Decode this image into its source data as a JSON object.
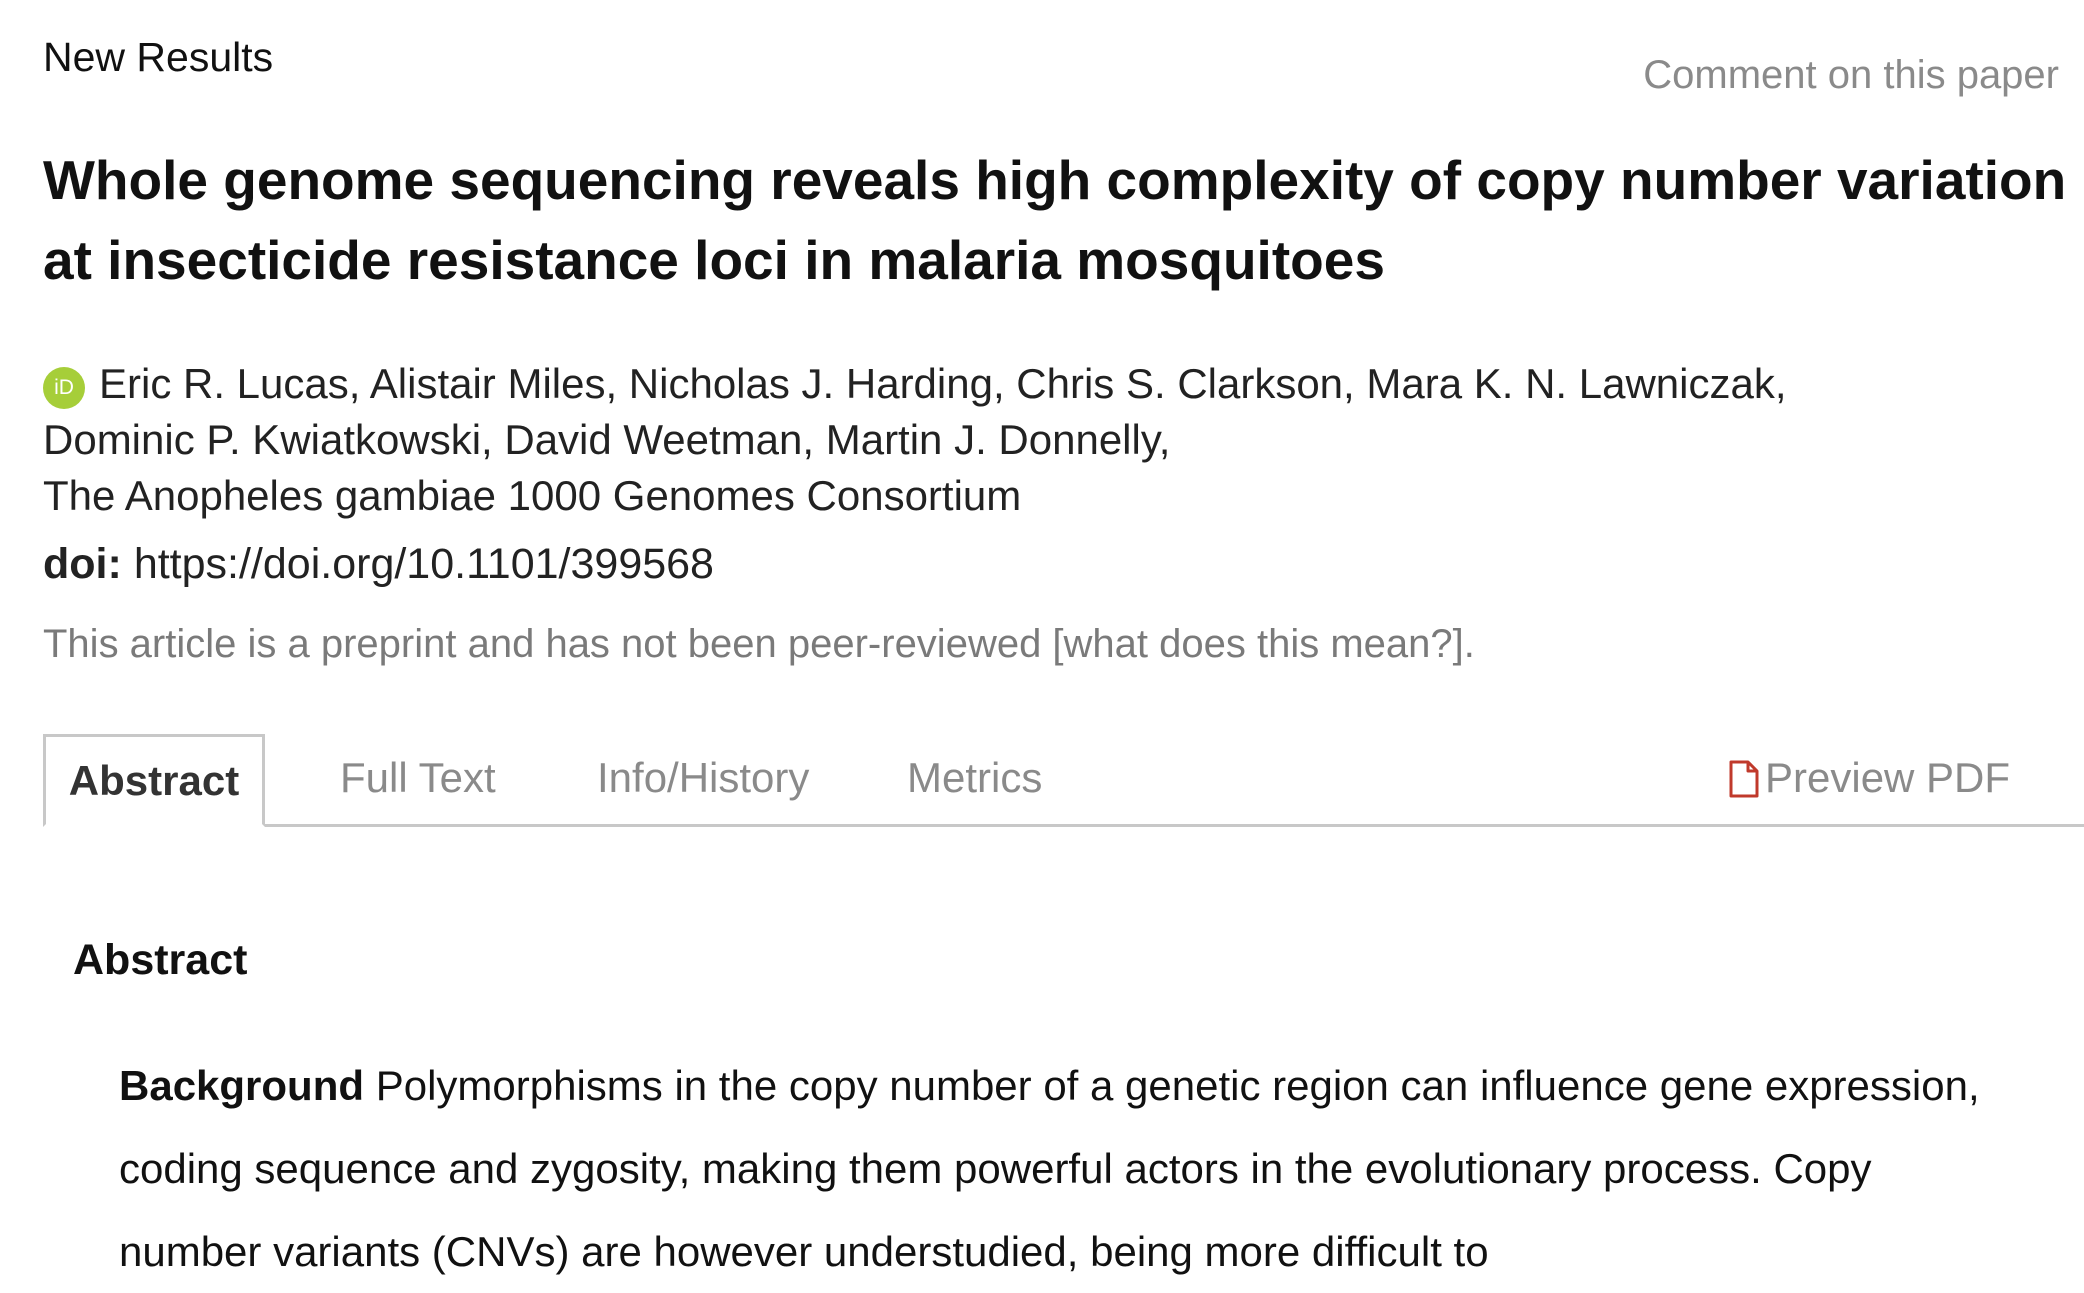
{
  "header": {
    "category": "New Results",
    "comment_link": "Comment on this paper"
  },
  "article": {
    "title": "Whole genome sequencing reveals high complexity of copy number variation at insecticide resistance loci in malaria mosquitoes",
    "orcid_badge": "iD",
    "authors_line1": "Eric R. Lucas, Alistair Miles, Nicholas J. Harding, Chris S. Clarkson, Mara K. N. Lawniczak,",
    "authors_line2": "Dominic P. Kwiatkowski, David Weetman, Martin J. Donnelly,",
    "authors_line3": "The Anopheles gambiae 1000 Genomes Consortium",
    "doi_label": "doi:",
    "doi_value": "https://doi.org/10.1101/399568",
    "preprint_note": "This article is a preprint and has not been peer-reviewed [what does this mean?]."
  },
  "tabs": {
    "abstract": "Abstract",
    "full_text": "Full Text",
    "info_history": "Info/History",
    "metrics": "Metrics",
    "preview_pdf": "Preview PDF"
  },
  "abstract": {
    "heading": "Abstract",
    "background_label": "Background",
    "background_text": "Polymorphisms in the copy number of a genetic region can influence gene expression, coding sequence and zygosity, making them powerful actors in the evolutionary process. Copy number variants (CNVs) are however understudied, being more difficult to"
  },
  "colors": {
    "orcid_green": "#a6ce39",
    "pdf_red": "#c0392b",
    "muted_gray": "#8a8a8a"
  },
  "icons": {
    "orcid": "orcid-icon",
    "pdf": "pdf-file-icon"
  }
}
